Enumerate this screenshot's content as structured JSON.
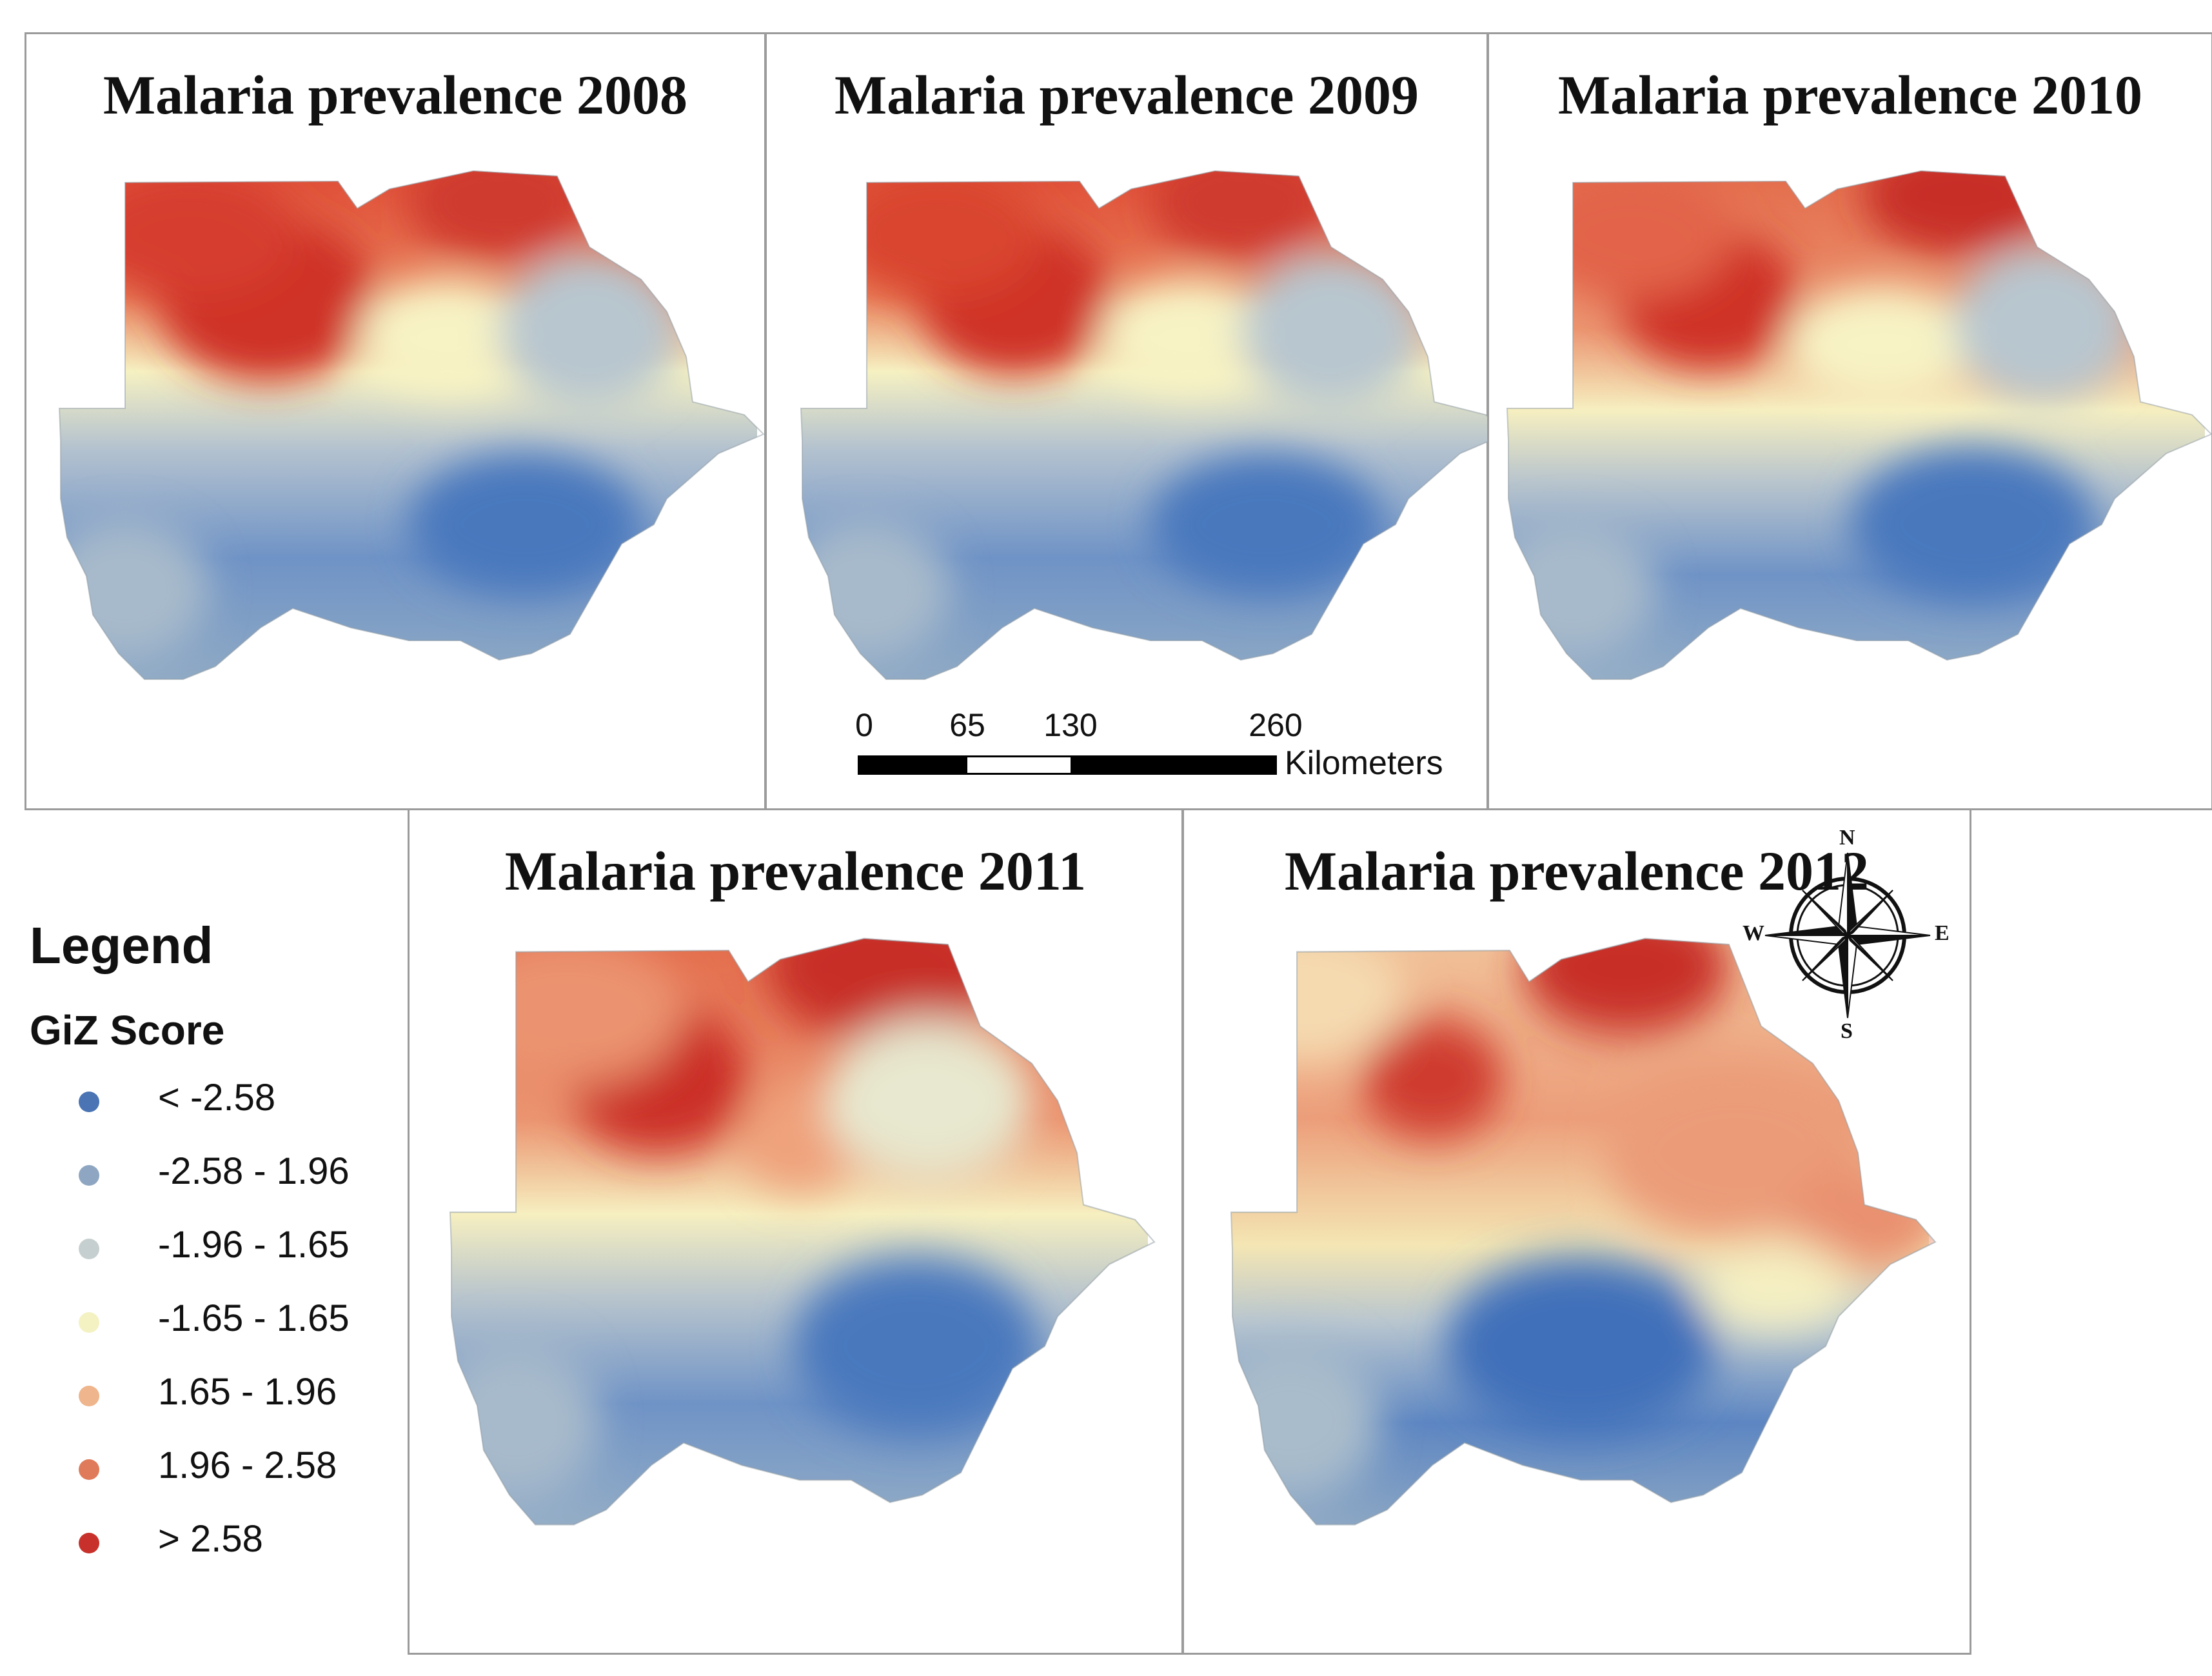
{
  "panels": [
    {
      "title": "Malaria prevalence 2008"
    },
    {
      "title": "Malaria prevalence 2009"
    },
    {
      "title": "Malaria prevalence 2010"
    },
    {
      "title": "Malaria prevalence 2011"
    },
    {
      "title": "Malaria prevalence 2012"
    }
  ],
  "legend": {
    "title": "Legend",
    "subtitle": "GiZ Score",
    "items": [
      {
        "label": "< -2.58",
        "color": "#4a74b4"
      },
      {
        "label": "-2.58 - 1.96",
        "color": "#8ea6c1"
      },
      {
        "label": "-1.96 - 1.65",
        "color": "#c6cfcf"
      },
      {
        "label": "-1.65 - 1.65",
        "color": "#f4f2c3"
      },
      {
        "label": "1.65 - 1.96",
        "color": "#efb58c"
      },
      {
        "label": "1.96 - 2.58",
        "color": "#df7b5a"
      },
      {
        "label": "> 2.58",
        "color": "#c8312b"
      }
    ]
  },
  "scale_bar": {
    "ticks": [
      "0",
      "65",
      "130",
      "260"
    ],
    "units": "Kilometers"
  },
  "compass": {
    "n": "N",
    "s": "S",
    "e": "E",
    "w": "W"
  }
}
